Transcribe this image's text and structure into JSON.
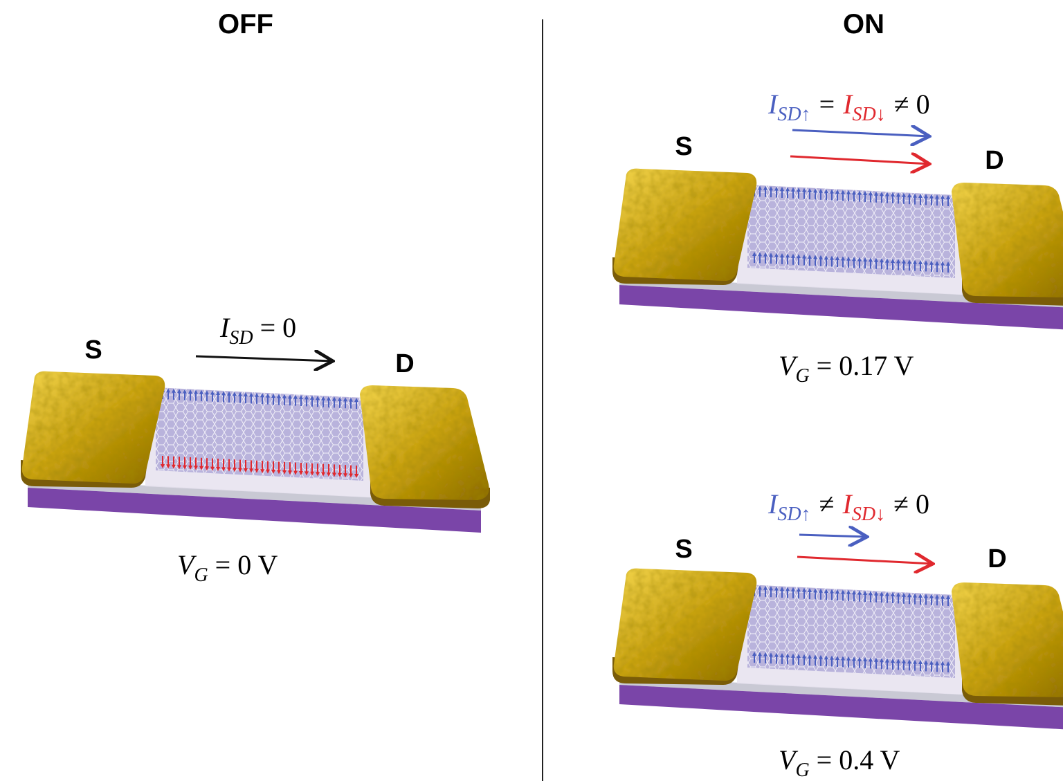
{
  "off": {
    "title": "OFF",
    "source": "S",
    "drain": "D",
    "current": {
      "symbol": "I",
      "subscript": "SD",
      "relation": "= 0"
    },
    "gate": {
      "symbol": "V",
      "subscript": "G",
      "relation": "= 0 V"
    }
  },
  "on": {
    "title": "ON",
    "panels": [
      {
        "source": "S",
        "drain": "D",
        "current": {
          "up_symbol": "I",
          "up_subscript": "SD↑",
          "relation": "=",
          "down_symbol": "I",
          "down_subscript": "SD↓",
          "result": "≠ 0"
        },
        "gate": {
          "symbol": "V",
          "subscript": "G",
          "relation": "= 0.17 V"
        }
      },
      {
        "source": "S",
        "drain": "D",
        "current": {
          "up_symbol": "I",
          "up_subscript": "SD↑",
          "relation": "≠",
          "down_symbol": "I",
          "down_subscript": "SD↓",
          "result": "≠ 0"
        },
        "gate": {
          "symbol": "V",
          "subscript": "G",
          "relation": "= 0.4 V"
        }
      }
    ]
  }
}
